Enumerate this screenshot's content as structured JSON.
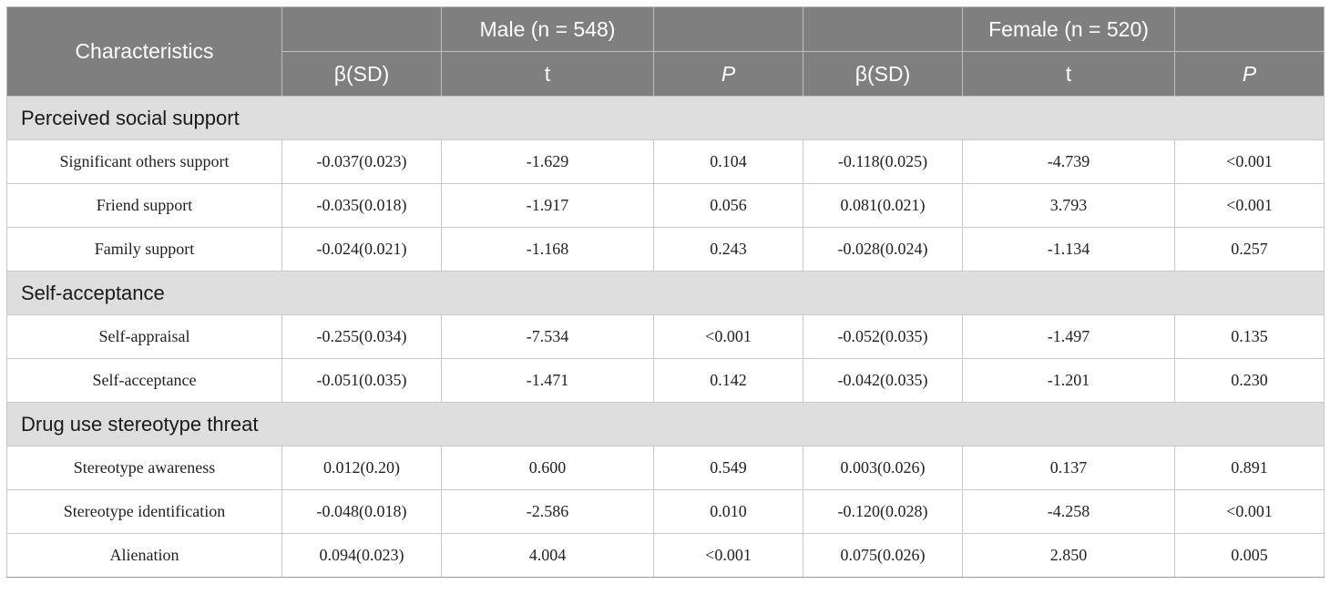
{
  "header": {
    "characteristics": "Characteristics",
    "male_group": "Male (n = 548)",
    "female_group": "Female (n = 520)",
    "col_beta": "β(SD)",
    "col_t": "t",
    "col_p": "P"
  },
  "sections": [
    {
      "title": "Perceived social support",
      "rows": [
        {
          "label": "Significant others support",
          "m_beta": "-0.037(0.023)",
          "m_t": "-1.629",
          "m_p": "0.104",
          "f_beta": "-0.118(0.025)",
          "f_t": "-4.739",
          "f_p": "<0.001"
        },
        {
          "label": "Friend support",
          "m_beta": "-0.035(0.018)",
          "m_t": "-1.917",
          "m_p": "0.056",
          "f_beta": "0.081(0.021)",
          "f_t": "3.793",
          "f_p": "<0.001"
        },
        {
          "label": "Family support",
          "m_beta": "-0.024(0.021)",
          "m_t": "-1.168",
          "m_p": "0.243",
          "f_beta": "-0.028(0.024)",
          "f_t": "-1.134",
          "f_p": "0.257"
        }
      ]
    },
    {
      "title": "Self-acceptance",
      "rows": [
        {
          "label": "Self-appraisal",
          "m_beta": "-0.255(0.034)",
          "m_t": "-7.534",
          "m_p": "<0.001",
          "f_beta": "-0.052(0.035)",
          "f_t": "-1.497",
          "f_p": "0.135"
        },
        {
          "label": "Self-acceptance",
          "m_beta": "-0.051(0.035)",
          "m_t": "-1.471",
          "m_p": "0.142",
          "f_beta": "-0.042(0.035)",
          "f_t": "-1.201",
          "f_p": "0.230"
        }
      ]
    },
    {
      "title": "Drug use stereotype threat",
      "rows": [
        {
          "label": "Stereotype awareness",
          "m_beta": "0.012(0.20)",
          "m_t": "0.600",
          "m_p": "0.549",
          "f_beta": "0.003(0.026)",
          "f_t": "0.137",
          "f_p": "0.891"
        },
        {
          "label": "Stereotype identification",
          "m_beta": "-0.048(0.018)",
          "m_t": "-2.586",
          "m_p": "0.010",
          "f_beta": "-0.120(0.028)",
          "f_t": "-4.258",
          "f_p": "<0.001"
        },
        {
          "label": "Alienation",
          "m_beta": "0.094(0.023)",
          "m_t": "4.004",
          "m_p": "<0.001",
          "f_beta": "0.075(0.026)",
          "f_t": "2.850",
          "f_p": "0.005"
        }
      ]
    }
  ]
}
